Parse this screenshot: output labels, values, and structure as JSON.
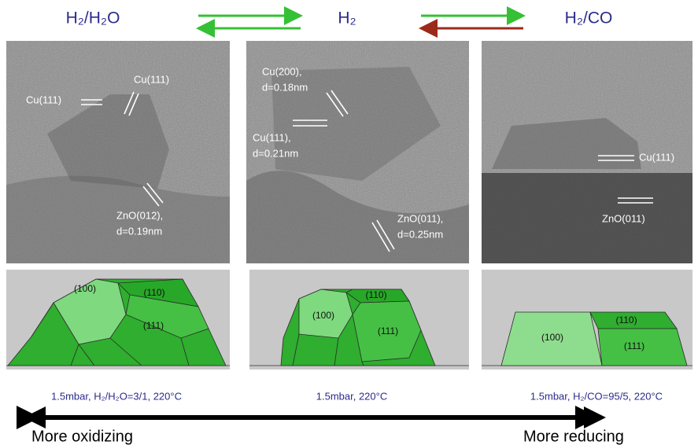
{
  "headers": [
    "H₂/H₂O",
    "H₂",
    "H₂/CO"
  ],
  "panels": [
    {
      "labels": [
        [
          "Cu(111)"
        ],
        [
          "Cu(111)"
        ],
        [
          "ZnO(012),",
          "d=0.19nm"
        ]
      ],
      "facets": [
        "(100)",
        "(110)",
        "(111)"
      ],
      "condition": "1.5mbar, H₂/H₂O=3/1, 220°C"
    },
    {
      "labels": [
        [
          "Cu(200),",
          "d=0.18nm"
        ],
        [
          "Cu(111),",
          "d=0.21nm"
        ],
        [
          "ZnO(011),",
          "d=0.25nm"
        ]
      ],
      "facets": [
        "(100)",
        "(110)",
        "(111)"
      ],
      "condition": "1.5mbar, 220°C"
    },
    {
      "labels": [
        [
          "Cu(111)"
        ],
        [
          "ZnO(011)"
        ]
      ],
      "facets": [
        "(100)",
        "(110)",
        "(111)"
      ],
      "condition": "1.5mbar, H₂/CO=95/5, 220°C"
    }
  ],
  "scale": {
    "left": "More oxidizing",
    "right": "More reducing"
  }
}
